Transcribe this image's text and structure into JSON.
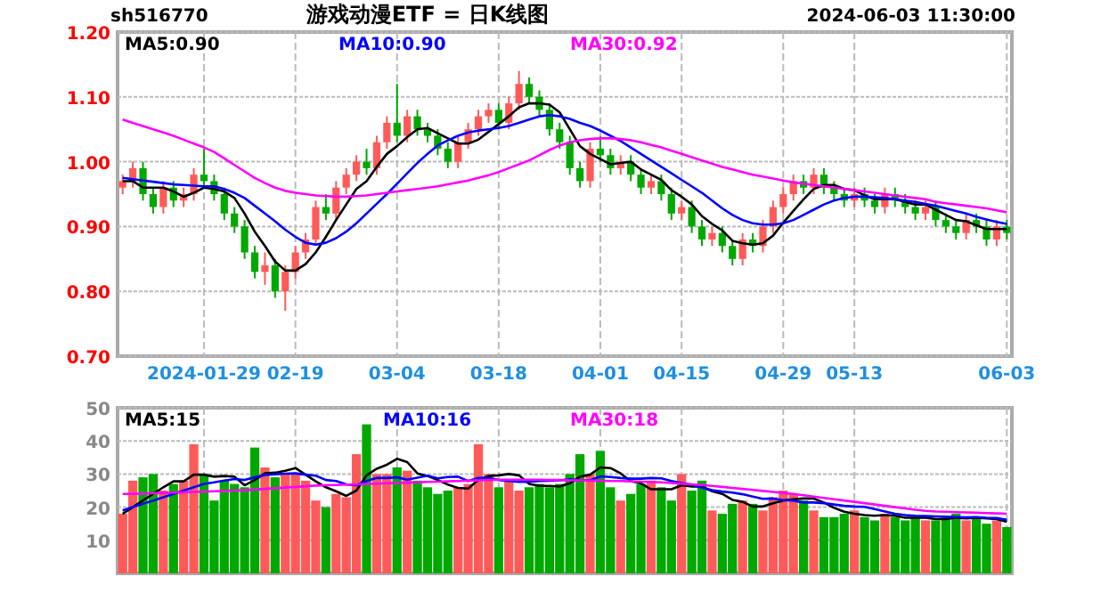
{
  "chart_data": [
    {
      "type": "candlestick",
      "title": "游戏动漫ETF = 日K线图",
      "annotations": [
        "sh516770",
        "2024-06-03 11:30:00"
      ],
      "grid": true,
      "legend": "top",
      "categories": [
        null,
        null,
        null,
        null,
        null,
        null,
        null,
        null,
        "2024-01-29",
        null,
        null,
        null,
        null,
        null,
        null,
        null,
        null,
        "02-19",
        null,
        null,
        null,
        null,
        null,
        null,
        null,
        null,
        null,
        "03-04",
        null,
        null,
        null,
        null,
        null,
        null,
        null,
        null,
        null,
        "03-18",
        null,
        null,
        null,
        null,
        null,
        null,
        null,
        null,
        null,
        "04-01",
        null,
        null,
        null,
        null,
        null,
        null,
        null,
        "04-15",
        null,
        null,
        null,
        null,
        null,
        null,
        null,
        null,
        null,
        "04-29",
        null,
        null,
        null,
        null,
        null,
        null,
        "05-13",
        null,
        null,
        null,
        null,
        null,
        null,
        null,
        null,
        null,
        null,
        null,
        null,
        null,
        null,
        "06-03"
      ],
      "ylim": [
        0.7,
        1.2
      ],
      "yticks": [
        {
          "value": 0.7,
          "label": "0.70"
        },
        {
          "value": 0.8,
          "label": "0.80"
        },
        {
          "value": 0.9,
          "label": "0.90"
        },
        {
          "value": 1.0,
          "label": "1.00"
        },
        {
          "value": 1.1,
          "label": "1.10"
        },
        {
          "value": 1.2,
          "label": "1.20"
        }
      ],
      "ohlc": [
        [
          0.96,
          0.98,
          0.95,
          0.97
        ],
        [
          0.97,
          1.0,
          0.96,
          0.99
        ],
        [
          0.99,
          1.0,
          0.94,
          0.95
        ],
        [
          0.95,
          0.96,
          0.92,
          0.93
        ],
        [
          0.93,
          0.97,
          0.92,
          0.96
        ],
        [
          0.96,
          0.97,
          0.93,
          0.94
        ],
        [
          0.94,
          0.96,
          0.93,
          0.95
        ],
        [
          0.95,
          0.99,
          0.94,
          0.98
        ],
        [
          0.98,
          1.02,
          0.96,
          0.97
        ],
        [
          0.97,
          0.98,
          0.94,
          0.95
        ],
        [
          0.95,
          0.96,
          0.91,
          0.92
        ],
        [
          0.92,
          0.93,
          0.89,
          0.9
        ],
        [
          0.9,
          0.91,
          0.85,
          0.86
        ],
        [
          0.86,
          0.87,
          0.82,
          0.83
        ],
        [
          0.83,
          0.86,
          0.81,
          0.84
        ],
        [
          0.84,
          0.85,
          0.79,
          0.8
        ],
        [
          0.8,
          0.84,
          0.77,
          0.83
        ],
        [
          0.83,
          0.87,
          0.82,
          0.86
        ],
        [
          0.86,
          0.89,
          0.85,
          0.88
        ],
        [
          0.88,
          0.94,
          0.87,
          0.93
        ],
        [
          0.93,
          0.95,
          0.91,
          0.92
        ],
        [
          0.92,
          0.97,
          0.91,
          0.96
        ],
        [
          0.96,
          0.99,
          0.95,
          0.98
        ],
        [
          0.98,
          1.01,
          0.97,
          1.0
        ],
        [
          1.0,
          1.02,
          0.98,
          0.99
        ],
        [
          0.99,
          1.04,
          0.98,
          1.03
        ],
        [
          1.03,
          1.07,
          1.02,
          1.06
        ],
        [
          1.06,
          1.12,
          1.03,
          1.04
        ],
        [
          1.04,
          1.08,
          1.03,
          1.07
        ],
        [
          1.07,
          1.08,
          1.04,
          1.05
        ],
        [
          1.05,
          1.06,
          1.03,
          1.04
        ],
        [
          1.04,
          1.05,
          1.01,
          1.02
        ],
        [
          1.02,
          1.03,
          0.99,
          1.0
        ],
        [
          1.0,
          1.04,
          0.99,
          1.03
        ],
        [
          1.03,
          1.06,
          1.02,
          1.05
        ],
        [
          1.05,
          1.08,
          1.04,
          1.07
        ],
        [
          1.07,
          1.09,
          1.06,
          1.08
        ],
        [
          1.08,
          1.09,
          1.05,
          1.06
        ],
        [
          1.06,
          1.1,
          1.05,
          1.09
        ],
        [
          1.09,
          1.14,
          1.08,
          1.12
        ],
        [
          1.12,
          1.13,
          1.09,
          1.1
        ],
        [
          1.1,
          1.11,
          1.07,
          1.08
        ],
        [
          1.08,
          1.09,
          1.04,
          1.05
        ],
        [
          1.05,
          1.06,
          1.02,
          1.03
        ],
        [
          1.03,
          1.04,
          0.98,
          0.99
        ],
        [
          0.99,
          1.0,
          0.96,
          0.97
        ],
        [
          0.97,
          1.03,
          0.96,
          1.02
        ],
        [
          1.02,
          1.04,
          1.0,
          1.01
        ],
        [
          1.01,
          1.02,
          0.98,
          0.99
        ],
        [
          0.99,
          1.01,
          0.98,
          1.0
        ],
        [
          1.0,
          1.01,
          0.97,
          0.98
        ],
        [
          0.98,
          0.99,
          0.95,
          0.96
        ],
        [
          0.96,
          0.98,
          0.95,
          0.97
        ],
        [
          0.97,
          0.98,
          0.94,
          0.95
        ],
        [
          0.95,
          0.96,
          0.91,
          0.92
        ],
        [
          0.92,
          0.94,
          0.91,
          0.93
        ],
        [
          0.93,
          0.94,
          0.89,
          0.9
        ],
        [
          0.9,
          0.91,
          0.87,
          0.88
        ],
        [
          0.88,
          0.9,
          0.87,
          0.89
        ],
        [
          0.89,
          0.9,
          0.86,
          0.87
        ],
        [
          0.87,
          0.88,
          0.84,
          0.85
        ],
        [
          0.85,
          0.89,
          0.84,
          0.88
        ],
        [
          0.88,
          0.89,
          0.86,
          0.87
        ],
        [
          0.87,
          0.91,
          0.86,
          0.9
        ],
        [
          0.9,
          0.94,
          0.89,
          0.93
        ],
        [
          0.93,
          0.96,
          0.92,
          0.95
        ],
        [
          0.95,
          0.98,
          0.94,
          0.97
        ],
        [
          0.97,
          0.98,
          0.95,
          0.96
        ],
        [
          0.96,
          0.99,
          0.95,
          0.98
        ],
        [
          0.98,
          0.99,
          0.95,
          0.96
        ],
        [
          0.96,
          0.97,
          0.94,
          0.95
        ],
        [
          0.95,
          0.96,
          0.93,
          0.94
        ],
        [
          0.94,
          0.96,
          0.93,
          0.95
        ],
        [
          0.95,
          0.96,
          0.93,
          0.94
        ],
        [
          0.94,
          0.95,
          0.92,
          0.93
        ],
        [
          0.93,
          0.96,
          0.92,
          0.95
        ],
        [
          0.95,
          0.96,
          0.93,
          0.94
        ],
        [
          0.94,
          0.95,
          0.92,
          0.93
        ],
        [
          0.93,
          0.94,
          0.91,
          0.92
        ],
        [
          0.92,
          0.94,
          0.91,
          0.93
        ],
        [
          0.93,
          0.94,
          0.9,
          0.91
        ],
        [
          0.91,
          0.92,
          0.89,
          0.9
        ],
        [
          0.9,
          0.91,
          0.88,
          0.89
        ],
        [
          0.89,
          0.92,
          0.88,
          0.91
        ],
        [
          0.91,
          0.92,
          0.89,
          0.9
        ],
        [
          0.9,
          0.91,
          0.87,
          0.88
        ],
        [
          0.88,
          0.91,
          0.87,
          0.9
        ],
        [
          0.9,
          0.91,
          0.88,
          0.89
        ]
      ],
      "colors": [
        "#ff5a5a",
        "#ff5a5a",
        "#00a800",
        "#00a800",
        "#ff5a5a",
        "#00a800",
        "#ff5a5a",
        "#ff5a5a",
        "#00a800",
        "#00a800",
        "#00a800",
        "#00a800",
        "#00a800",
        "#00a800",
        "#ff5a5a",
        "#00a800",
        "#ff5a5a",
        "#ff5a5a",
        "#ff5a5a",
        "#ff5a5a",
        "#00a800",
        "#ff5a5a",
        "#ff5a5a",
        "#ff5a5a",
        "#00a800",
        "#ff5a5a",
        "#ff5a5a",
        "#00a800",
        "#ff5a5a",
        "#00a800",
        "#00a800",
        "#00a800",
        "#00a800",
        "#ff5a5a",
        "#ff5a5a",
        "#ff5a5a",
        "#ff5a5a",
        "#00a800",
        "#ff5a5a",
        "#ff5a5a",
        "#00a800",
        "#00a800",
        "#00a800",
        "#00a800",
        "#00a800",
        "#00a800",
        "#ff5a5a",
        "#00a800",
        "#00a800",
        "#ff5a5a",
        "#00a800",
        "#00a800",
        "#ff5a5a",
        "#00a800",
        "#00a800",
        "#ff5a5a",
        "#00a800",
        "#00a800",
        "#ff5a5a",
        "#00a800",
        "#00a800",
        "#ff5a5a",
        "#00a800",
        "#ff5a5a",
        "#ff5a5a",
        "#ff5a5a",
        "#ff5a5a",
        "#00a800",
        "#ff5a5a",
        "#00a800",
        "#00a800",
        "#00a800",
        "#ff5a5a",
        "#00a800",
        "#00a800",
        "#ff5a5a",
        "#00a800",
        "#00a800",
        "#00a800",
        "#ff5a5a",
        "#00a800",
        "#00a800",
        "#00a800",
        "#ff5a5a",
        "#00a800",
        "#00a800",
        "#ff5a5a",
        "#00a800"
      ],
      "series": [
        {
          "name": "MA5:0.90",
          "type": "line",
          "color": "#000000",
          "values": [
            0.97,
            0.97,
            0.96,
            0.96,
            0.96,
            0.954,
            0.946,
            0.952,
            0.96,
            0.958,
            0.954,
            0.944,
            0.92,
            0.892,
            0.87,
            0.846,
            0.832,
            0.832,
            0.842,
            0.86,
            0.884,
            0.91,
            0.934,
            0.958,
            0.97,
            0.992,
            1.012,
            1.024,
            1.038,
            1.05,
            1.052,
            1.044,
            1.036,
            1.028,
            1.028,
            1.034,
            1.046,
            1.058,
            1.07,
            1.084,
            1.09,
            1.09,
            1.088,
            1.076,
            1.05,
            1.024,
            1.012,
            1.004,
            0.996,
            0.998,
            1.0,
            0.988,
            0.98,
            0.972,
            0.956,
            0.946,
            0.934,
            0.916,
            0.904,
            0.894,
            0.878,
            0.874,
            0.872,
            0.874,
            0.886,
            0.906,
            0.924,
            0.942,
            0.958,
            0.964,
            0.964,
            0.958,
            0.956,
            0.948,
            0.942,
            0.942,
            0.942,
            0.938,
            0.934,
            0.934,
            0.926,
            0.918,
            0.91,
            0.908,
            0.902,
            0.896,
            0.896,
            0.896
          ]
        },
        {
          "name": "MA10:0.90",
          "type": "line",
          "color": "#0000ff",
          "values": [
            0.975,
            0.973,
            0.971,
            0.969,
            0.967,
            0.965,
            0.964,
            0.963,
            0.962,
            0.962,
            0.958,
            0.952,
            0.944,
            0.932,
            0.92,
            0.908,
            0.895,
            0.884,
            0.875,
            0.872,
            0.875,
            0.882,
            0.892,
            0.905,
            0.92,
            0.935,
            0.95,
            0.966,
            0.982,
            0.998,
            1.012,
            1.025,
            1.033,
            1.04,
            1.045,
            1.048,
            1.05,
            1.052,
            1.055,
            1.06,
            1.065,
            1.07,
            1.072,
            1.07,
            1.066,
            1.06,
            1.055,
            1.048,
            1.04,
            1.032,
            1.022,
            1.012,
            1.002,
            0.992,
            0.982,
            0.972,
            0.962,
            0.952,
            0.94,
            0.928,
            0.918,
            0.91,
            0.905,
            0.903,
            0.903,
            0.905,
            0.91,
            0.918,
            0.926,
            0.934,
            0.94,
            0.944,
            0.946,
            0.946,
            0.945,
            0.944,
            0.942,
            0.94,
            0.938,
            0.935,
            0.932,
            0.928,
            0.924,
            0.92,
            0.915,
            0.911,
            0.907,
            0.904
          ]
        },
        {
          "name": "MA30:0.92",
          "type": "line",
          "color": "#ff00ff",
          "values": [
            1.065,
            1.06,
            1.055,
            1.05,
            1.045,
            1.04,
            1.034,
            1.028,
            1.022,
            1.015,
            1.005,
            0.995,
            0.985,
            0.975,
            0.967,
            0.96,
            0.955,
            0.952,
            0.95,
            0.948,
            0.947,
            0.946,
            0.946,
            0.947,
            0.948,
            0.95,
            0.952,
            0.954,
            0.956,
            0.958,
            0.96,
            0.962,
            0.965,
            0.968,
            0.971,
            0.975,
            0.979,
            0.984,
            0.99,
            0.996,
            1.002,
            1.01,
            1.018,
            1.025,
            1.03,
            1.033,
            1.035,
            1.036,
            1.036,
            1.035,
            1.033,
            1.03,
            1.026,
            1.022,
            1.017,
            1.012,
            1.007,
            1.002,
            0.997,
            0.992,
            0.988,
            0.984,
            0.98,
            0.977,
            0.974,
            0.971,
            0.968,
            0.966,
            0.964,
            0.962,
            0.96,
            0.958,
            0.956,
            0.954,
            0.952,
            0.95,
            0.948,
            0.946,
            0.944,
            0.942,
            0.938,
            0.936,
            0.934,
            0.932,
            0.93,
            0.928,
            0.925,
            0.922
          ]
        }
      ]
    },
    {
      "type": "bar",
      "grid": true,
      "legend": "top",
      "tick_labels": "y",
      "categories": [
        null,
        null,
        null,
        null,
        null,
        null,
        null,
        null,
        null,
        null,
        null,
        null,
        null,
        null,
        null,
        null,
        null,
        null,
        null,
        null,
        null,
        null,
        null,
        null,
        null,
        null,
        null,
        null,
        null,
        null,
        null,
        null,
        null,
        null,
        null,
        null,
        null,
        null,
        null,
        null,
        null,
        null,
        null,
        null,
        null,
        null,
        null,
        null,
        null,
        null,
        null,
        null,
        null,
        null,
        null,
        null,
        null,
        null,
        null,
        null,
        null,
        null,
        null,
        null,
        null,
        null,
        null,
        null,
        null,
        null,
        null,
        null,
        null,
        null,
        null,
        null,
        null,
        null,
        null,
        null,
        null,
        null,
        null,
        null,
        null,
        null,
        null,
        null
      ],
      "ylim": [
        0,
        50
      ],
      "yticks": [
        10,
        20,
        30,
        40,
        50
      ],
      "values": [
        18,
        28,
        29,
        30,
        25,
        27,
        28,
        39,
        30,
        22,
        28,
        27,
        26,
        38,
        32,
        29,
        30,
        30,
        28,
        22,
        20,
        24,
        23,
        36,
        45,
        30,
        30,
        32,
        31,
        28,
        26,
        24,
        25,
        26,
        27,
        39,
        30,
        26,
        28,
        25,
        26,
        27,
        26,
        27,
        30,
        36,
        30,
        37,
        26,
        22,
        24,
        27,
        28,
        26,
        22,
        30,
        25,
        28,
        19,
        18,
        21,
        22,
        21,
        19,
        23,
        25,
        24,
        22,
        19,
        17,
        17,
        18,
        19,
        17,
        16,
        18,
        17,
        16,
        17,
        16,
        16,
        17,
        18,
        16,
        17,
        15,
        16,
        14
      ],
      "colors": [
        "#ff5a5a",
        "#ff5a5a",
        "#00a800",
        "#00a800",
        "#ff5a5a",
        "#00a800",
        "#ff5a5a",
        "#ff5a5a",
        "#00a800",
        "#00a800",
        "#00a800",
        "#00a800",
        "#00a800",
        "#00a800",
        "#ff5a5a",
        "#00a800",
        "#ff5a5a",
        "#ff5a5a",
        "#ff5a5a",
        "#ff5a5a",
        "#00a800",
        "#ff5a5a",
        "#ff5a5a",
        "#ff5a5a",
        "#00a800",
        "#ff5a5a",
        "#ff5a5a",
        "#00a800",
        "#ff5a5a",
        "#00a800",
        "#00a800",
        "#00a800",
        "#00a800",
        "#ff5a5a",
        "#ff5a5a",
        "#ff5a5a",
        "#ff5a5a",
        "#00a800",
        "#ff5a5a",
        "#ff5a5a",
        "#00a800",
        "#00a800",
        "#00a800",
        "#00a800",
        "#00a800",
        "#00a800",
        "#ff5a5a",
        "#00a800",
        "#00a800",
        "#ff5a5a",
        "#00a800",
        "#00a800",
        "#ff5a5a",
        "#00a800",
        "#00a800",
        "#ff5a5a",
        "#00a800",
        "#00a800",
        "#ff5a5a",
        "#00a800",
        "#00a800",
        "#ff5a5a",
        "#00a800",
        "#ff5a5a",
        "#ff5a5a",
        "#ff5a5a",
        "#ff5a5a",
        "#00a800",
        "#ff5a5a",
        "#00a800",
        "#00a800",
        "#00a800",
        "#ff5a5a",
        "#00a800",
        "#00a800",
        "#ff5a5a",
        "#00a800",
        "#00a800",
        "#00a800",
        "#ff5a5a",
        "#00a800",
        "#00a800",
        "#00a800",
        "#ff5a5a",
        "#00a800",
        "#00a800",
        "#ff5a5a",
        "#00a800"
      ],
      "series": [
        {
          "name": "MA5:15",
          "type": "line",
          "color": "#000000",
          "values": [
            18,
            20,
            22,
            24,
            26,
            27.8,
            27.8,
            29.8,
            29.8,
            29.2,
            29.4,
            29.2,
            26.6,
            28.2,
            30.2,
            30.4,
            31,
            31.8,
            29.8,
            27.8,
            26,
            24.8,
            23.4,
            25,
            29.6,
            31.6,
            32.8,
            34.6,
            33.6,
            30.2,
            29.4,
            28.2,
            26.8,
            25.8,
            25.6,
            28.2,
            29.4,
            29.6,
            30,
            29.6,
            27,
            26.4,
            26.4,
            26.2,
            27.2,
            29.2,
            29.8,
            32,
            31.8,
            30.2,
            27.8,
            27.2,
            25.4,
            25.4,
            25.4,
            26.6,
            26.2,
            26.2,
            24.8,
            24,
            22.2,
            21.6,
            20.2,
            20.2,
            21.2,
            22,
            22.4,
            22.6,
            22.6,
            21.4,
            19.8,
            18.6,
            18,
            17.6,
            17.4,
            17.6,
            17.4,
            16.8,
            16.8,
            16.8,
            16.4,
            16.4,
            16.8,
            16.6,
            16.8,
            16.6,
            16.4,
            15.6
          ]
        },
        {
          "name": "MA10:16",
          "type": "line",
          "color": "#0000ff",
          "values": [
            19,
            20,
            21,
            22,
            23,
            24,
            25,
            26,
            27,
            27.5,
            28,
            28.5,
            28.2,
            29,
            29.7,
            29.9,
            30.1,
            30.2,
            29.8,
            29.5,
            28.2,
            27.9,
            26.9,
            26.6,
            27.9,
            28.8,
            28.8,
            29,
            28.3,
            28.9,
            29.5,
            28.7,
            29.1,
            29.2,
            27.9,
            28.8,
            28.8,
            28.2,
            27.9,
            27.6,
            27.6,
            27.9,
            28,
            28.1,
            28.4,
            28.1,
            28.1,
            29.3,
            29.1,
            28.8,
            28.6,
            28.6,
            28.8,
            28.7,
            27.9,
            27.3,
            26.8,
            25.9,
            25.1,
            24.7,
            24.4,
            23.9,
            23.2,
            22.5,
            22.6,
            22.1,
            22,
            21.4,
            21.4,
            21.2,
            20.8,
            20.4,
            20.2,
            20.1,
            19.4,
            18.7,
            18,
            17.6,
            17.4,
            17.3,
            17.2,
            17.1,
            17,
            16.9,
            17,
            16.8,
            16.7,
            16.2
          ]
        },
        {
          "name": "MA30:18",
          "type": "line",
          "color": "#ff00ff",
          "values": [
            24,
            24,
            24.1,
            24.2,
            24.3,
            24.4,
            24.5,
            24.6,
            24.7,
            24.8,
            24.9,
            25,
            25.1,
            25.3,
            25.5,
            25.7,
            25.9,
            26.1,
            26.3,
            26.5,
            26.6,
            26.7,
            26.8,
            26.9,
            27,
            27.1,
            27.2,
            27.3,
            27.4,
            27.5,
            27.6,
            27.7,
            27.8,
            27.9,
            28,
            28.1,
            28.2,
            28.3,
            28.3,
            28.3,
            28.3,
            28.3,
            28.2,
            28.2,
            28.1,
            28.1,
            28,
            28,
            27.9,
            27.9,
            27.8,
            27.7,
            27.6,
            27.5,
            27.3,
            27.1,
            26.9,
            26.7,
            26.4,
            26.1,
            25.8,
            25.5,
            25.2,
            24.9,
            24.6,
            24.3,
            24,
            23.6,
            23.2,
            22.8,
            22.4,
            22,
            21.6,
            21.2,
            20.8,
            20.4,
            20,
            19.6,
            19.2,
            18.9,
            18.7,
            18.6,
            18.5,
            18.4,
            18.3,
            18.2,
            18.1,
            18
          ]
        }
      ]
    }
  ]
}
